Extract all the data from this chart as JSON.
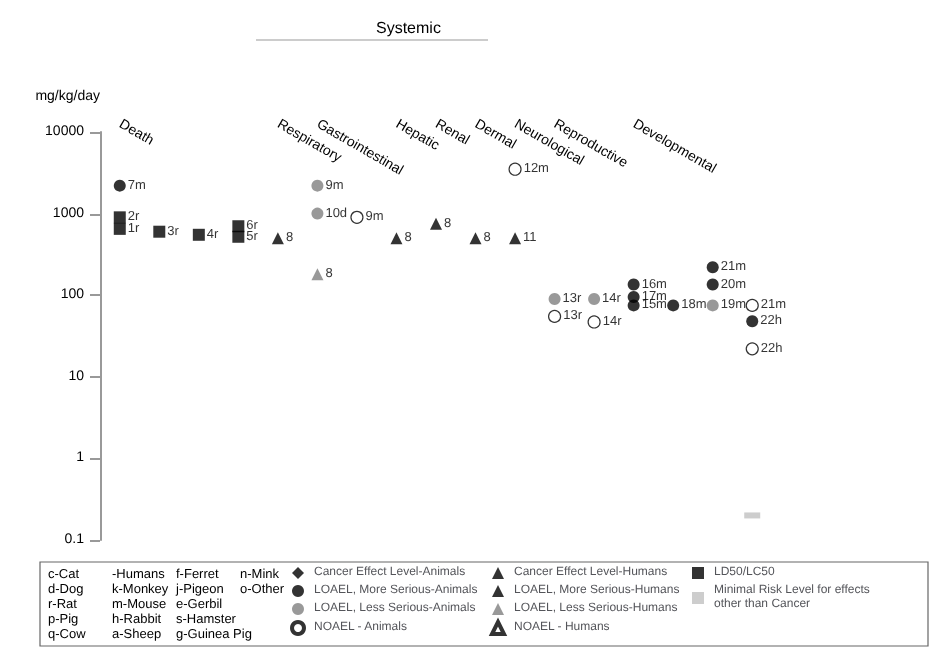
{
  "chart_data": {
    "type": "scatter",
    "ylabel": "mg/kg/day",
    "categories": [
      "Death",
      null,
      null,
      null,
      "Respiratory",
      "Gastrointestinal",
      null,
      "Hepatic",
      "Renal",
      "Dermal",
      "Neurological",
      "Reproductive",
      null,
      "Developmental",
      null,
      null,
      null
    ],
    "log": "y",
    "ylim": [
      0.1,
      10000
    ],
    "yticks": [
      0.1,
      1,
      10,
      100,
      1000,
      10000
    ],
    "grid": false,
    "legend": "bottom",
    "series": [
      {
        "name": "Cancer Effect Level-Animals",
        "color": "#000000",
        "marker": "diamond",
        "values": [
          null,
          null,
          null,
          null,
          null,
          null,
          null,
          null,
          null,
          null,
          null,
          null,
          null,
          null,
          null,
          null,
          null
        ]
      },
      {
        "name": "LOAEL, More Serious-Animals",
        "color": "#000000",
        "marker": "circle",
        "values": [
          2200,
          null,
          null,
          null,
          null,
          null,
          null,
          null,
          null,
          null,
          null,
          null,
          null,
          135,
          75,
          220,
          48
        ]
      },
      {
        "name": "LOAEL, Less Serious-Animals",
        "color": "#808080",
        "marker": "circle",
        "values": [
          null,
          null,
          null,
          null,
          null,
          2200,
          null,
          null,
          null,
          null,
          null,
          90,
          90,
          null,
          null,
          75,
          null
        ]
      },
      {
        "name": "NOAEL - Animals",
        "color": "#ffffff",
        "marker": "circle",
        "values": [
          null,
          null,
          null,
          null,
          null,
          null,
          900,
          null,
          null,
          null,
          3500,
          55,
          47,
          null,
          null,
          null,
          75
        ]
      },
      {
        "name": "Cancer Effect Level-Humans",
        "color": "#000000",
        "marker": "triangle",
        "values": [
          null,
          null,
          null,
          null,
          null,
          null,
          null,
          null,
          null,
          null,
          null,
          null,
          null,
          null,
          null,
          null,
          null
        ]
      },
      {
        "name": "LOAEL, More Serious-Humans",
        "color": "#000000",
        "marker": "triangle",
        "values": [
          null,
          null,
          null,
          null,
          500,
          null,
          null,
          500,
          750,
          500,
          500,
          null,
          null,
          null,
          null,
          null,
          null
        ]
      },
      {
        "name": "LOAEL, Less Serious-Humans",
        "color": "#808080",
        "marker": "triangle",
        "values": [
          null,
          null,
          null,
          null,
          null,
          180,
          null,
          null,
          null,
          null,
          null,
          null,
          null,
          null,
          null,
          null,
          null
        ]
      },
      {
        "name": "NOAEL - Humans",
        "color": "#ffffff",
        "marker": "triangle",
        "values": [
          null,
          null,
          null,
          null,
          null,
          null,
          null,
          null,
          null,
          null,
          null,
          null,
          null,
          null,
          null,
          null,
          null
        ]
      },
      {
        "name": "LD50/LC50",
        "color": "#000000",
        "marker": "square",
        "values": [
          900,
          600,
          550,
          700,
          null,
          null,
          null,
          null,
          null,
          null,
          null,
          null,
          null,
          null,
          null,
          null,
          null
        ]
      },
      {
        "name": "Minimal Risk Level for effects other than Cancer",
        "color": "#c0c0c0",
        "marker": "square",
        "values": [
          null,
          null,
          null,
          null,
          null,
          null,
          null,
          null,
          null,
          null,
          null,
          null,
          null,
          null,
          null,
          null,
          0.2
        ]
      },
      {
        "color": "#000000",
        "marker": "circle",
        "values": [
          null,
          null,
          null,
          null,
          null,
          null,
          null,
          null,
          null,
          null,
          null,
          null,
          null,
          95,
          null,
          135,
          null
        ]
      },
      {
        "color": "#000000",
        "marker": "circle",
        "values": [
          null,
          null,
          null,
          null,
          null,
          null,
          null,
          null,
          null,
          null,
          null,
          null,
          null,
          75,
          null,
          null,
          null
        ]
      },
      {
        "color": "#808080",
        "marker": "circle",
        "values": [
          null,
          null,
          null,
          null,
          null,
          1000,
          null,
          null,
          null,
          null,
          null,
          null,
          null,
          null,
          null,
          null,
          null
        ]
      },
      {
        "color": "#ffffff",
        "marker": "circle",
        "values": [
          null,
          null,
          null,
          null,
          null,
          null,
          null,
          null,
          null,
          null,
          null,
          null,
          null,
          null,
          null,
          null,
          22
        ]
      },
      {
        "color": "#000000",
        "marker": "square",
        "values": [
          650,
          null,
          null,
          520,
          null,
          null,
          null,
          null,
          null,
          null,
          null,
          null,
          null,
          null,
          null,
          null,
          null
        ]
      }
    ],
    "annotations": [
      "Systemic",
      "c-Cat",
      "d-Dog",
      "r-Rat",
      "p-Pig",
      "q-Cow",
      "-Humans",
      "k-Monkey",
      "m-Mouse",
      "h-Rabbit",
      "a-Sheep",
      "f-Ferret",
      "j-Pigeon",
      "e-Gerbil",
      "s-Hamster",
      "g-Guinea Pig",
      "n-Mink",
      "o-Other",
      "7m",
      "16m",
      "18m",
      "21m",
      "22h",
      "9m",
      "13r",
      "14r",
      "19m",
      "9m",
      "12m",
      "13r",
      "14r",
      "21m",
      "8",
      "8",
      "8",
      "8",
      "11",
      "8",
      "2r",
      "3r",
      "4r",
      "6r",
      "17m",
      "20m",
      "15m",
      "10d",
      "22h",
      "1r",
      "5r"
    ]
  }
}
